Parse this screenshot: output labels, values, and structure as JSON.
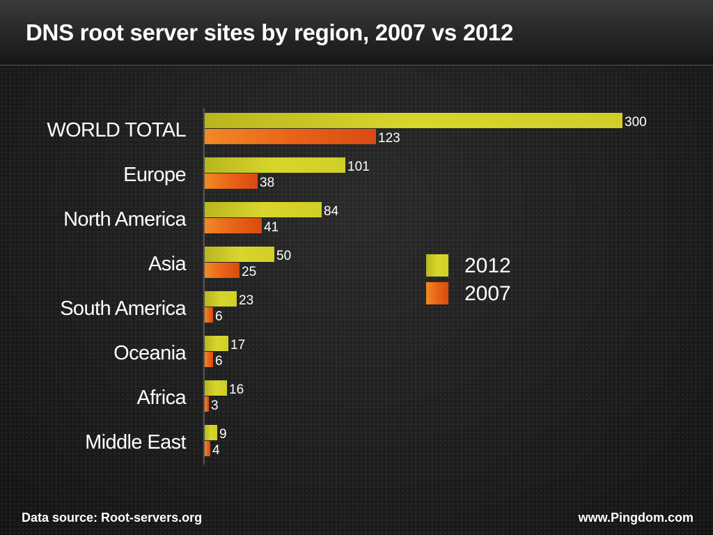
{
  "header": {
    "title": "DNS root server sites by region, 2007 vs 2012"
  },
  "footer": {
    "source": "Data source: Root-servers.org",
    "credit": "www.Pingdom.com"
  },
  "colors": {
    "series_2012": "#d4d22a",
    "series_2007": "#e65a16"
  },
  "chart_data": {
    "type": "bar",
    "orientation": "horizontal",
    "title": "DNS root server sites by region, 2007 vs 2012",
    "categories": [
      "WORLD TOTAL",
      "Europe",
      "North America",
      "Asia",
      "South America",
      "Oceania",
      "Africa",
      "Middle East"
    ],
    "series": [
      {
        "name": "2012",
        "values": [
          300,
          101,
          84,
          50,
          23,
          17,
          16,
          9
        ]
      },
      {
        "name": "2007",
        "values": [
          123,
          38,
          41,
          25,
          6,
          6,
          3,
          4
        ]
      }
    ],
    "xlim": [
      0,
      300
    ],
    "grid": false,
    "legend": "right-center"
  }
}
